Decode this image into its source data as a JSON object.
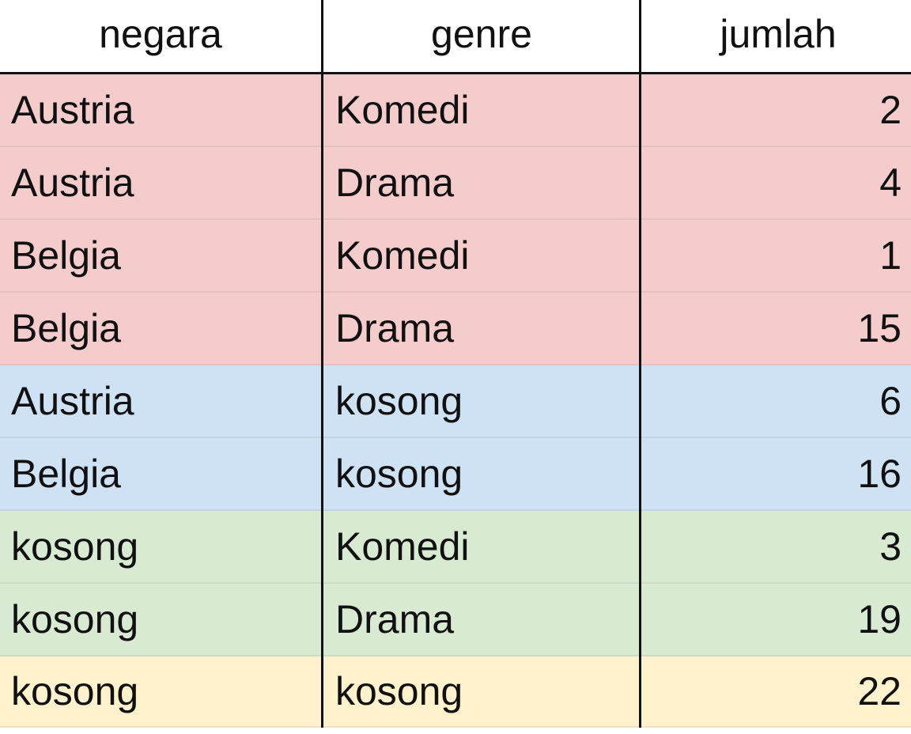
{
  "table": {
    "headers": [
      "negara",
      "genre",
      "jumlah"
    ],
    "rows": [
      {
        "negara": "Austria",
        "genre": "Komedi",
        "jumlah": "2",
        "fill": "#f4cccc"
      },
      {
        "negara": "Austria",
        "genre": "Drama",
        "jumlah": "4",
        "fill": "#f4cccc"
      },
      {
        "negara": "Belgia",
        "genre": "Komedi",
        "jumlah": "1",
        "fill": "#f4cccc"
      },
      {
        "negara": "Belgia",
        "genre": "Drama",
        "jumlah": "15",
        "fill": "#f4cccc"
      },
      {
        "negara": "Austria",
        "genre": "kosong",
        "jumlah": "6",
        "fill": "#cfe2f3"
      },
      {
        "negara": "Belgia",
        "genre": "kosong",
        "jumlah": "16",
        "fill": "#cfe2f3"
      },
      {
        "negara": "kosong",
        "genre": "Komedi",
        "jumlah": "3",
        "fill": "#d9ead3"
      },
      {
        "negara": "kosong",
        "genre": "Drama",
        "jumlah": "19",
        "fill": "#d9ead3"
      },
      {
        "negara": "kosong",
        "genre": "kosong",
        "jumlah": "22",
        "fill": "#fff2cc"
      }
    ]
  },
  "colors": {
    "red_group": "#f4cccc",
    "blue_group": "#cfe2f3",
    "green_group": "#d9ead3",
    "yellow_group": "#fff2cc",
    "border": "#111111"
  }
}
